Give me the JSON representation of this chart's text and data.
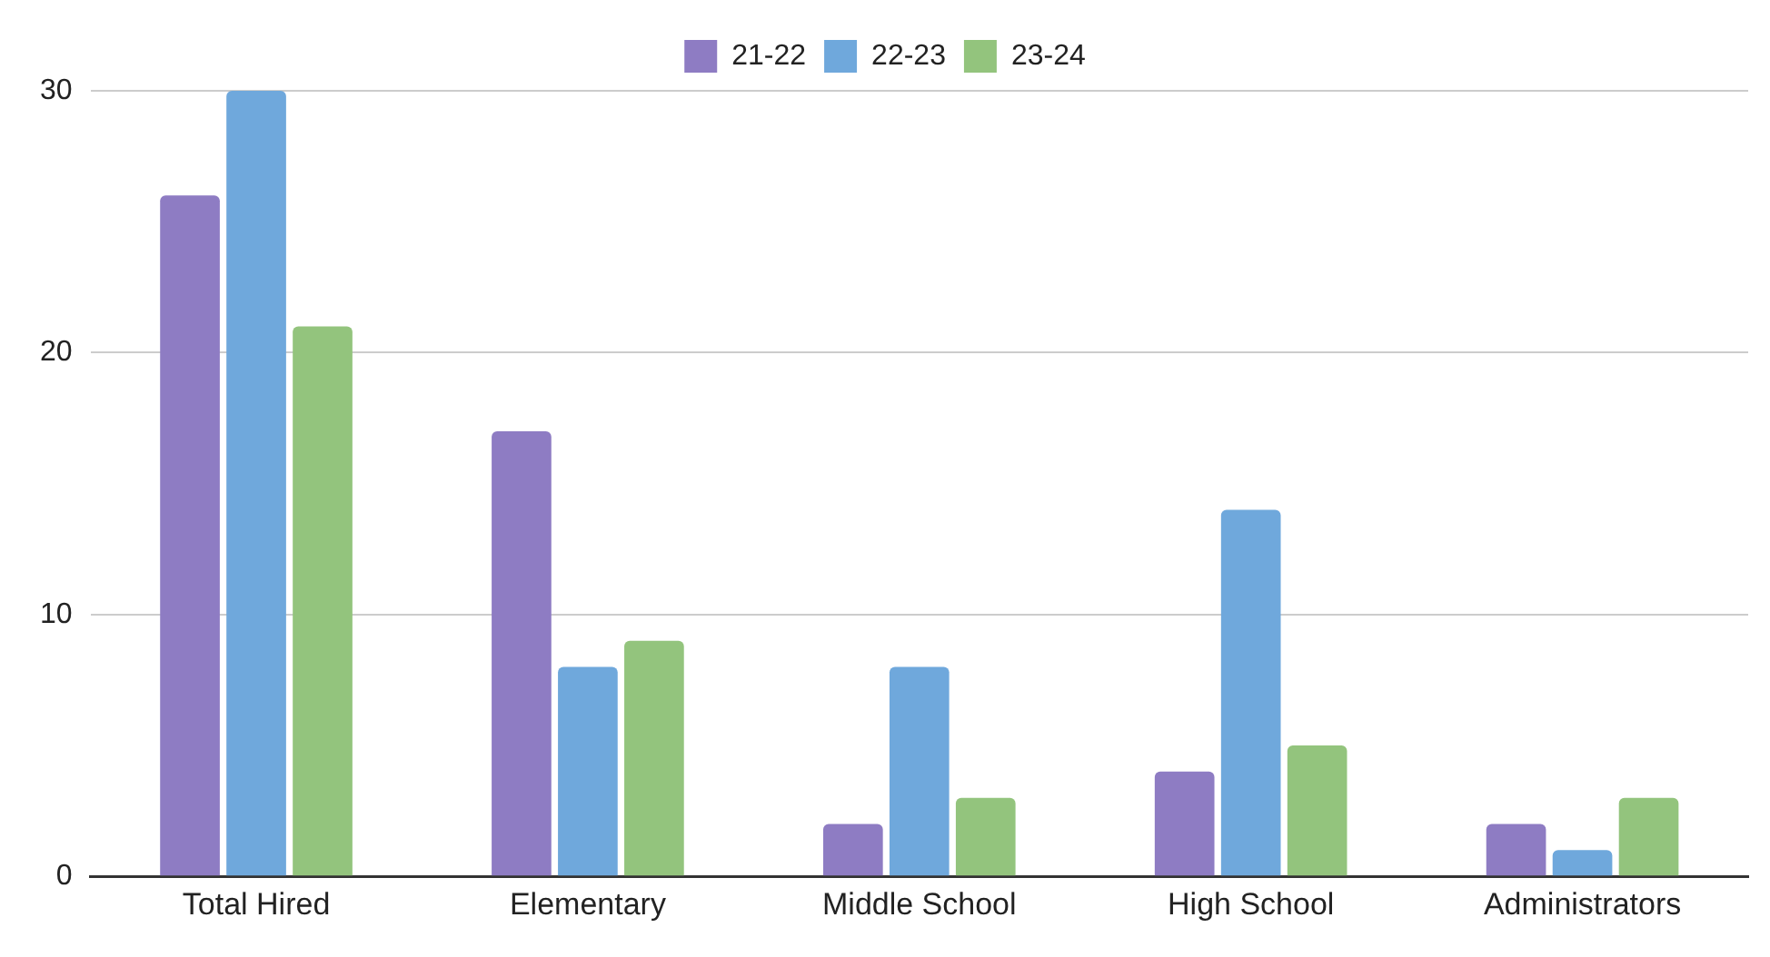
{
  "chart_data": {
    "type": "bar",
    "categories": [
      "Total Hired",
      "Elementary",
      "Middle School",
      "High School",
      "Administrators"
    ],
    "series": [
      {
        "name": "21-22",
        "color": "#8e7cc3",
        "values": [
          26,
          17,
          2,
          4,
          2
        ]
      },
      {
        "name": "22-23",
        "color": "#6fa8dc",
        "values": [
          30,
          8,
          8,
          14,
          1
        ]
      },
      {
        "name": "23-24",
        "color": "#93c47d",
        "values": [
          21,
          9,
          3,
          5,
          3
        ]
      }
    ],
    "ylim": [
      0,
      30
    ],
    "yticks": [
      0,
      10,
      20,
      30
    ],
    "grid": "y",
    "legend": "top"
  }
}
